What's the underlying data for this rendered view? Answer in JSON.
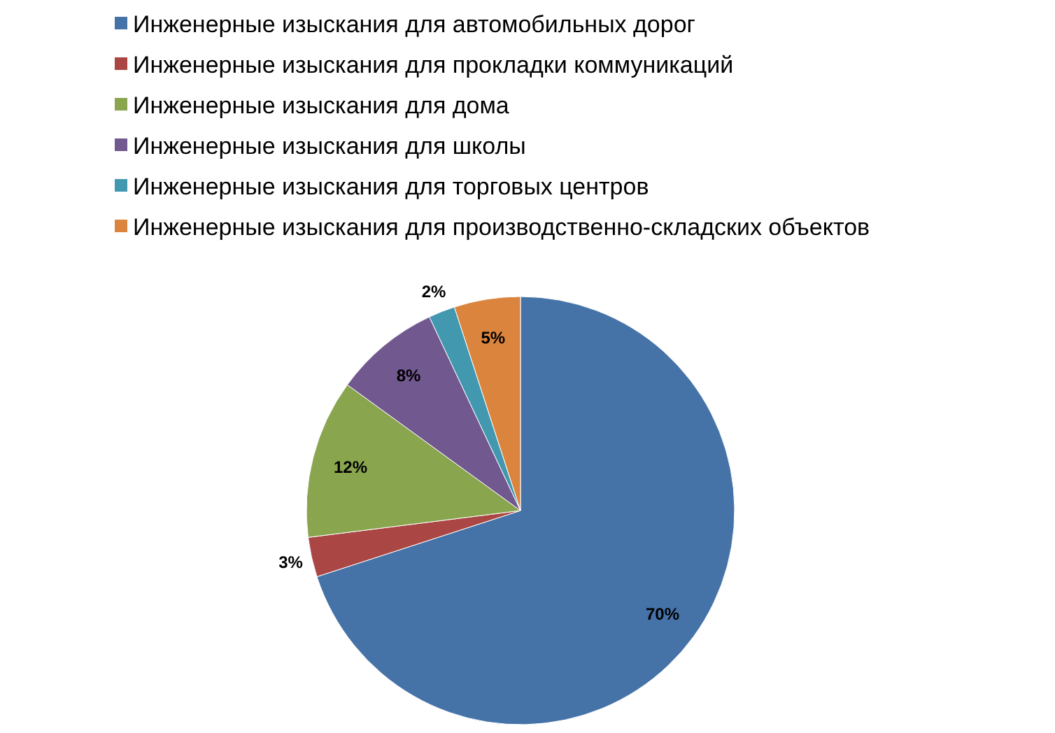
{
  "chart_data": {
    "type": "pie",
    "categories": [
      "Инженерные изыскания для автомобильных дорог",
      "Инженерные изыскания для прокладки коммуникаций",
      "Инженерные изыскания для дома",
      "Инженерные изыскания для школы",
      "Инженерные изыскания для торговых центров",
      "Инженерные изыскания для производственно-складских объектов"
    ],
    "values": [
      70,
      3,
      12,
      8,
      2,
      5
    ],
    "colors": [
      "#4572a7",
      "#aa4643",
      "#89a54e",
      "#71588f",
      "#4198af",
      "#db843d"
    ],
    "value_labels": [
      "70%",
      "3%",
      "12%",
      "8%",
      "2%",
      "5%"
    ],
    "legend": "top"
  }
}
